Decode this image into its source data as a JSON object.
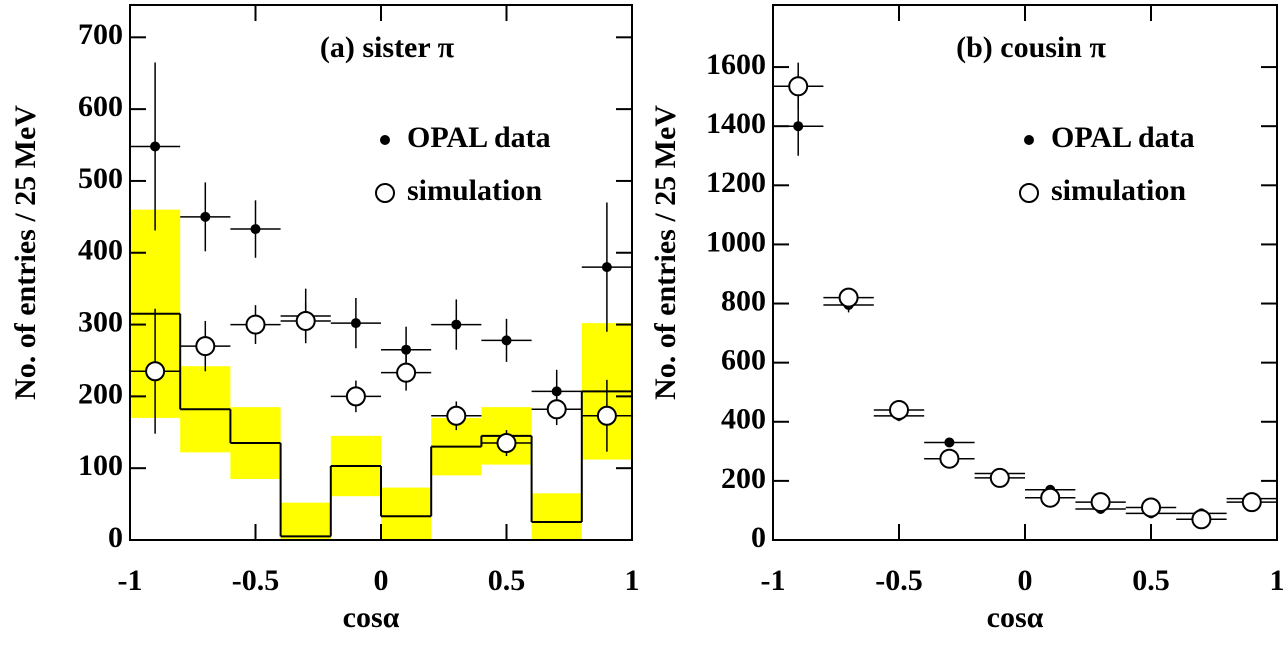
{
  "chart_data": [
    {
      "type": "errorbar",
      "title": "(a) sister π",
      "xlabel": "cosα",
      "ylabel": "No. of entries / 25 MeV",
      "x": [
        -0.9,
        -0.7,
        -0.5,
        -0.3,
        -0.1,
        0.1,
        0.3,
        0.5,
        0.7,
        0.9
      ],
      "xlim": [
        -1,
        1
      ],
      "ylim": [
        0,
        745
      ],
      "xticks": [
        -1,
        -0.5,
        0,
        0.5,
        1
      ],
      "yticks": [
        0,
        100,
        200,
        300,
        400,
        500,
        600,
        700
      ],
      "legend": "upper right",
      "series": [
        {
          "name": "OPAL data",
          "color": "#000000",
          "marker": "filled",
          "values": [
            548,
            450,
            433,
            312,
            302,
            265,
            300,
            278,
            207,
            380
          ],
          "errors": [
            117,
            48,
            40,
            38,
            35,
            32,
            35,
            30,
            30,
            90
          ]
        },
        {
          "name": "simulation",
          "color": "#000000",
          "marker": "open",
          "values": [
            235,
            270,
            300,
            305,
            200,
            233,
            173,
            135,
            182,
            173
          ],
          "errors": [
            87,
            35,
            27,
            25,
            22,
            25,
            20,
            18,
            22,
            50
          ]
        }
      ],
      "histogram": {
        "color": "#000000",
        "band_color": "#ffff00",
        "values": [
          315,
          182,
          135,
          5,
          103,
          33,
          130,
          145,
          25,
          207
        ],
        "errors": [
          145,
          60,
          50,
          47,
          42,
          40,
          40,
          40,
          40,
          95
        ]
      }
    },
    {
      "type": "errorbar",
      "title": "(b) cousin π",
      "xlabel": "cosα",
      "ylabel": "No. of entries / 25 MeV",
      "x": [
        -0.9,
        -0.7,
        -0.5,
        -0.3,
        -0.1,
        0.1,
        0.3,
        0.5,
        0.7,
        0.9
      ],
      "xlim": [
        -1,
        1
      ],
      "ylim": [
        0,
        1810
      ],
      "xticks": [
        -1,
        -0.5,
        0,
        0.5,
        1
      ],
      "yticks": [
        0,
        200,
        400,
        600,
        800,
        1000,
        1200,
        1400,
        1600
      ],
      "legend": "upper right",
      "series": [
        {
          "name": "OPAL data",
          "color": "#000000",
          "marker": "filled",
          "values": [
            1400,
            795,
            420,
            330,
            225,
            170,
            105,
            90,
            90,
            140
          ],
          "errors": [
            100,
            25,
            18,
            16,
            14,
            12,
            10,
            10,
            10,
            12
          ]
        },
        {
          "name": "simulation",
          "color": "#000000",
          "marker": "open",
          "values": [
            1535,
            820,
            440,
            275,
            210,
            143,
            128,
            110,
            70,
            128
          ],
          "errors": [
            80,
            20,
            15,
            14,
            12,
            10,
            10,
            10,
            8,
            10
          ]
        }
      ]
    }
  ]
}
